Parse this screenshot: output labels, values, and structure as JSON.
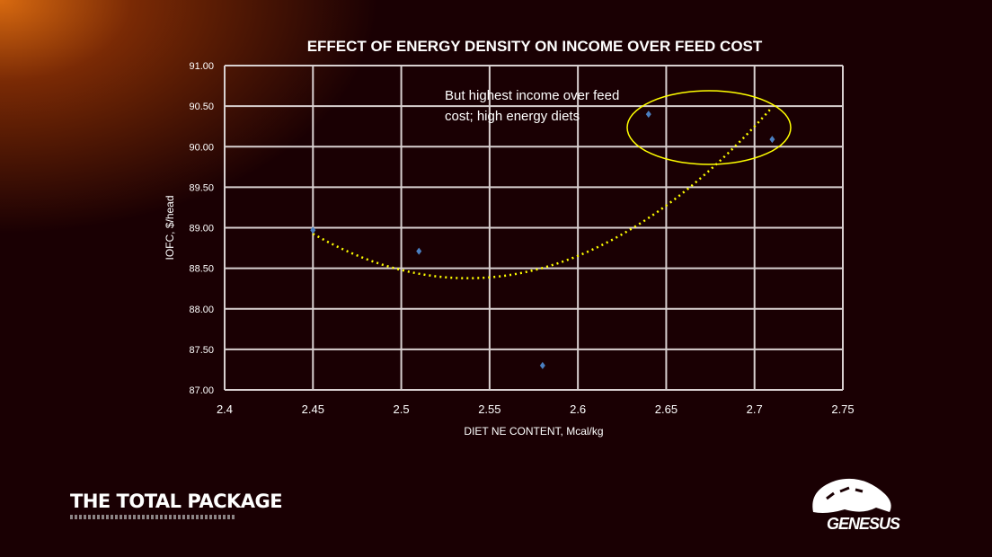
{
  "chart_data": {
    "type": "scatter",
    "title": "EFFECT OF ENERGY DENSITY ON INCOME OVER FEED COST",
    "xlabel": "DIET NE CONTENT, Mcal/kg",
    "ylabel": "IOFC, $/head",
    "xlim": [
      2.4,
      2.75
    ],
    "ylim": [
      87.0,
      91.0
    ],
    "x_ticks": [
      "2.4",
      "2.45",
      "2.5",
      "2.55",
      "2.6",
      "2.65",
      "2.7",
      "2.75"
    ],
    "y_ticks": [
      "87.00",
      "87.50",
      "88.00",
      "88.50",
      "89.00",
      "89.50",
      "90.00",
      "90.50",
      "91.00"
    ],
    "grid": true,
    "series": [
      {
        "points": [
          [
            2.45,
            88.97
          ],
          [
            2.51,
            88.71
          ],
          [
            2.58,
            87.3
          ],
          [
            2.64,
            90.4
          ],
          [
            2.71,
            90.09
          ]
        ],
        "color": "#4a7fc1",
        "trendline": {
          "type": "polynomial-2",
          "color": "#ffff00",
          "style": "dotted"
        }
      }
    ],
    "annotation": {
      "text": "But highest income over feed cost; high energy diets",
      "highlight_color": "#ffff00"
    }
  },
  "branding": {
    "left_title": "THE TOTAL PACKAGE",
    "right_logo": "GENESUS"
  }
}
